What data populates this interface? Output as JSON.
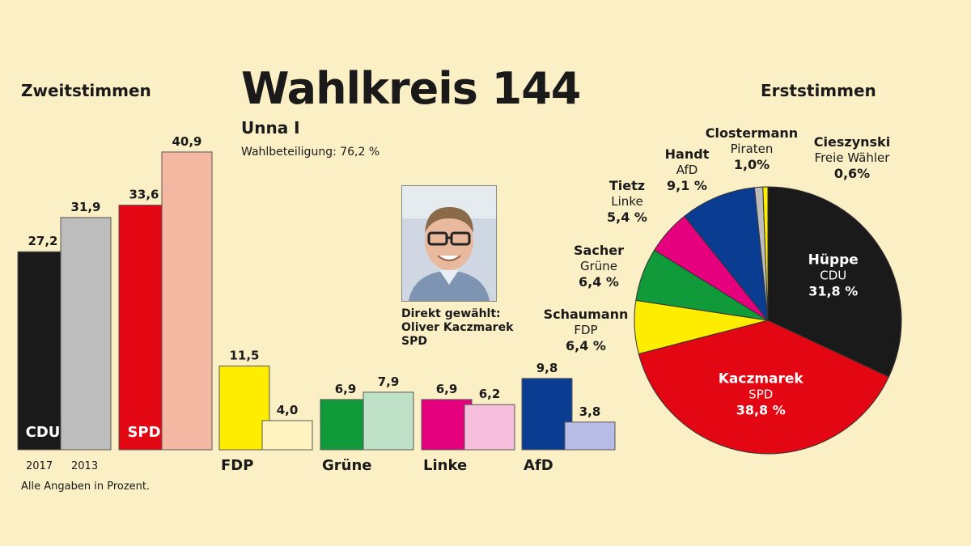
{
  "header": {
    "title": "Wahlkreis 144",
    "subtitle": "Unna I",
    "turnout": "Wahlbeteiligung: 76,2 %"
  },
  "sections": {
    "left": "Zweitstimmen",
    "right": "Erststimmen"
  },
  "elected": {
    "line1": "Direkt gewählt:",
    "line2": "Oliver Kaczmarek",
    "line3": "SPD"
  },
  "footnote": "Alle Angaben in Prozent.",
  "chart_data": [
    {
      "type": "bar",
      "title": "Zweitstimmen",
      "categories": [
        "CDU",
        "SPD",
        "FDP",
        "Grüne",
        "Linke",
        "AfD"
      ],
      "year_labels": [
        "2017",
        "2013"
      ],
      "series": [
        {
          "name": "2017",
          "values": [
            27.2,
            33.6,
            11.5,
            6.9,
            6.9,
            9.8
          ],
          "labels": [
            "27,2",
            "33,6",
            "11,5",
            "6,9",
            "6,9",
            "9,8"
          ],
          "colors": [
            "#1a1a1a",
            "#e30613",
            "#ffed00",
            "#119a3a",
            "#e5007e",
            "#0a3d91"
          ]
        },
        {
          "name": "2013",
          "values": [
            31.9,
            40.9,
            4.0,
            7.9,
            6.2,
            3.8
          ],
          "labels": [
            "31,9",
            "40,9",
            "4,0",
            "7,9",
            "6,2",
            "3,8"
          ],
          "colors": [
            "#bdbdbd",
            "#f4b8a3",
            "#fff4c0",
            "#bfe1c8",
            "#f5bfdc",
            "#b7bde6"
          ]
        }
      ],
      "inbar_labels": {
        "CDU": "CDU",
        "SPD": "SPD"
      },
      "ylim": [
        0,
        45
      ],
      "grid": false
    },
    {
      "type": "pie",
      "title": "Erststimmen",
      "slices": [
        {
          "name": "Hüppe",
          "party": "CDU",
          "value": 31.8,
          "label": "31,8 %",
          "color": "#1a1a1a"
        },
        {
          "name": "Kaczmarek",
          "party": "SPD",
          "value": 38.8,
          "label": "38,8 %",
          "color": "#e30613"
        },
        {
          "name": "Schaumann",
          "party": "FDP",
          "value": 6.4,
          "label": "6,4 %",
          "color": "#ffed00"
        },
        {
          "name": "Sacher",
          "party": "Grüne",
          "value": 6.4,
          "label": "6,4 %",
          "color": "#119a3a"
        },
        {
          "name": "Tietz",
          "party": "Linke",
          "value": 5.4,
          "label": "5,4 %",
          "color": "#e5007e"
        },
        {
          "name": "Handt",
          "party": "AfD",
          "value": 9.1,
          "label": "9,1 %",
          "color": "#0a3d91"
        },
        {
          "name": "Clostermann",
          "party": "Piraten",
          "value": 1.0,
          "label": "1,0%",
          "color": "#bcbcbc"
        },
        {
          "name": "Cieszynski",
          "party": "Freie Wähler",
          "value": 0.6,
          "label": "0,6%",
          "color": "#ffed00"
        }
      ]
    }
  ]
}
